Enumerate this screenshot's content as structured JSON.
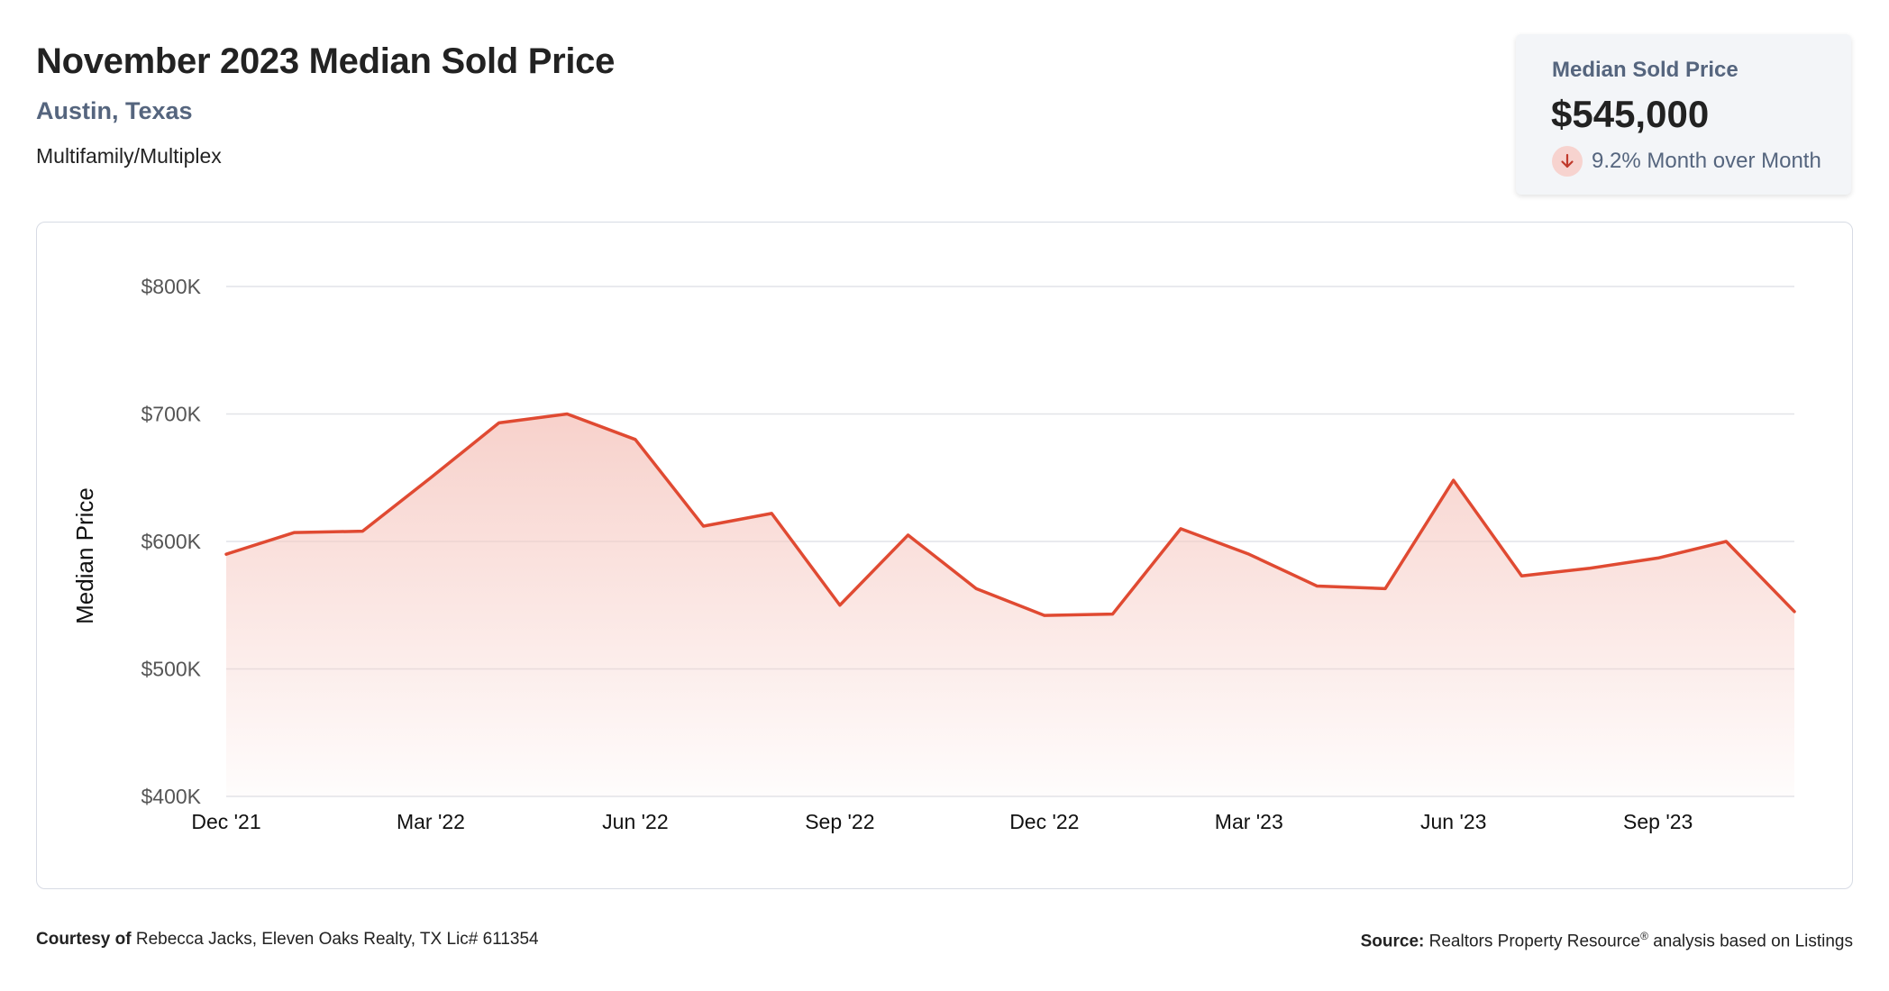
{
  "header": {
    "title": "November 2023 Median Sold Price",
    "location": "Austin, Texas",
    "property_type": "Multifamily/Multiplex"
  },
  "kpi": {
    "label": "Median Sold Price",
    "value": "$545,000",
    "change": "9.2% Month over Month",
    "direction": "down",
    "direction_icon": "arrow-down-icon",
    "accent_color": "#e04a32",
    "badge_color": "#f7d3cf"
  },
  "chart_data": {
    "type": "area",
    "ylabel": "Median Price",
    "xlabel": "",
    "ylim": [
      400000,
      800000
    ],
    "y_ticks": [
      400000,
      500000,
      600000,
      700000,
      800000
    ],
    "y_tick_labels": [
      "$400K",
      "$500K",
      "$600K",
      "$700K",
      "$800K"
    ],
    "x_tick_labels": [
      "Dec '21",
      "Mar '22",
      "Jun '22",
      "Sep '22",
      "Dec '22",
      "Mar '23",
      "Jun '23",
      "Sep '23"
    ],
    "x_tick_indices": [
      0,
      3,
      6,
      9,
      12,
      15,
      18,
      21
    ],
    "grid": true,
    "line_color": "#e04a32",
    "fill_color": "#f6c9c2",
    "x": [
      "2021-12",
      "2022-01",
      "2022-02",
      "2022-03",
      "2022-04",
      "2022-05",
      "2022-06",
      "2022-07",
      "2022-08",
      "2022-09",
      "2022-10",
      "2022-11",
      "2022-12",
      "2023-01",
      "2023-02",
      "2023-03",
      "2023-04",
      "2023-05",
      "2023-06",
      "2023-07",
      "2023-08",
      "2023-09",
      "2023-10",
      "2023-11"
    ],
    "values": [
      590000,
      607000,
      608000,
      650000,
      693000,
      700000,
      680000,
      612000,
      622000,
      550000,
      605000,
      563000,
      542000,
      543000,
      610000,
      590000,
      565000,
      563000,
      648000,
      573000,
      579000,
      587000,
      600000,
      545000
    ]
  },
  "footer": {
    "courtesy_label": "Courtesy of",
    "courtesy_text": "Rebecca Jacks, Eleven Oaks Realty, TX Lic# 611354",
    "source_label": "Source:",
    "source_name": "Realtors Property Resource",
    "source_mark": "®",
    "source_text": "analysis based on Listings"
  }
}
